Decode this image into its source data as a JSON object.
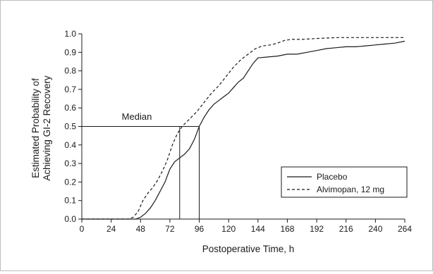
{
  "chart_data": {
    "type": "line",
    "title": "",
    "xlabel": "Postoperative Time, h",
    "ylabel": "Estimated Probability of Achieving GI-2 Recovery",
    "ylabel_lines": [
      "Estimated Probability of",
      "Achieving GI-2 Recovery"
    ],
    "xlim": [
      0,
      264
    ],
    "ylim": [
      0,
      1.0
    ],
    "xticks": [
      0,
      24,
      48,
      72,
      96,
      120,
      144,
      168,
      192,
      216,
      240,
      264
    ],
    "yticks": [
      0.0,
      0.1,
      0.2,
      0.3,
      0.4,
      0.5,
      0.6,
      0.7,
      0.8,
      0.9,
      1.0
    ],
    "ytick_labels": [
      "0.0",
      "0.1",
      "0.2",
      "0.3",
      "0.4",
      "0.5",
      "0.6",
      "0.7",
      "0.8",
      "0.9",
      "1.0"
    ],
    "grid": false,
    "legend_position": "bottom-right",
    "annotation": {
      "label": "Median",
      "y": 0.5,
      "x_values": [
        80,
        96
      ]
    },
    "series": [
      {
        "name": "Placebo",
        "line_style": "solid",
        "points": [
          [
            0,
            0
          ],
          [
            44,
            0
          ],
          [
            48,
            0.01
          ],
          [
            52,
            0.03
          ],
          [
            56,
            0.06
          ],
          [
            60,
            0.1
          ],
          [
            64,
            0.15
          ],
          [
            68,
            0.2
          ],
          [
            72,
            0.27
          ],
          [
            76,
            0.31
          ],
          [
            80,
            0.33
          ],
          [
            84,
            0.35
          ],
          [
            88,
            0.38
          ],
          [
            92,
            0.43
          ],
          [
            96,
            0.5
          ],
          [
            100,
            0.55
          ],
          [
            104,
            0.59
          ],
          [
            108,
            0.62
          ],
          [
            112,
            0.64
          ],
          [
            116,
            0.66
          ],
          [
            120,
            0.68
          ],
          [
            124,
            0.71
          ],
          [
            128,
            0.74
          ],
          [
            132,
            0.76
          ],
          [
            136,
            0.8
          ],
          [
            140,
            0.84
          ],
          [
            144,
            0.87
          ],
          [
            152,
            0.875
          ],
          [
            160,
            0.88
          ],
          [
            168,
            0.89
          ],
          [
            176,
            0.89
          ],
          [
            184,
            0.9
          ],
          [
            192,
            0.91
          ],
          [
            200,
            0.92
          ],
          [
            208,
            0.925
          ],
          [
            216,
            0.93
          ],
          [
            224,
            0.93
          ],
          [
            232,
            0.935
          ],
          [
            240,
            0.94
          ],
          [
            248,
            0.945
          ],
          [
            256,
            0.95
          ],
          [
            264,
            0.96
          ]
        ]
      },
      {
        "name": "Alvimopan, 12 mg",
        "line_style": "dashed",
        "points": [
          [
            0,
            0
          ],
          [
            38,
            0
          ],
          [
            42,
            0.01
          ],
          [
            46,
            0.04
          ],
          [
            50,
            0.1
          ],
          [
            54,
            0.14
          ],
          [
            58,
            0.17
          ],
          [
            62,
            0.21
          ],
          [
            66,
            0.26
          ],
          [
            70,
            0.32
          ],
          [
            74,
            0.4
          ],
          [
            78,
            0.46
          ],
          [
            82,
            0.5
          ],
          [
            88,
            0.54
          ],
          [
            94,
            0.58
          ],
          [
            100,
            0.63
          ],
          [
            106,
            0.68
          ],
          [
            112,
            0.72
          ],
          [
            118,
            0.77
          ],
          [
            124,
            0.82
          ],
          [
            130,
            0.86
          ],
          [
            136,
            0.89
          ],
          [
            142,
            0.92
          ],
          [
            148,
            0.935
          ],
          [
            154,
            0.94
          ],
          [
            160,
            0.95
          ],
          [
            166,
            0.965
          ],
          [
            172,
            0.97
          ],
          [
            180,
            0.97
          ],
          [
            192,
            0.975
          ],
          [
            210,
            0.98
          ],
          [
            230,
            0.98
          ],
          [
            264,
            0.98
          ]
        ]
      }
    ]
  }
}
